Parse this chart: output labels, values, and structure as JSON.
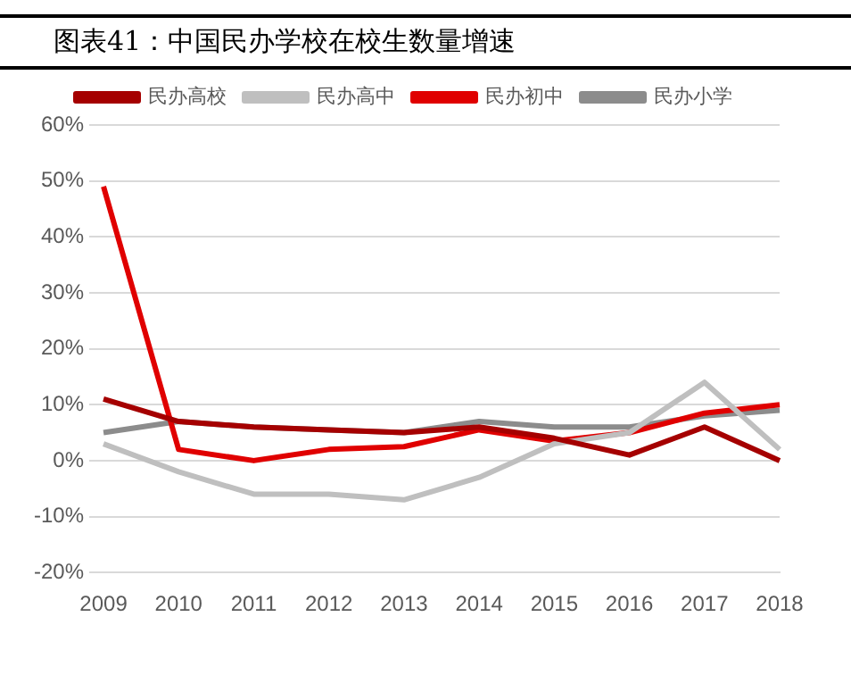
{
  "chart_data": {
    "type": "line",
    "title": "图表41：中国民办学校在校生数量增速",
    "categories": [
      "2009",
      "2010",
      "2011",
      "2012",
      "2013",
      "2014",
      "2015",
      "2016",
      "2017",
      "2018"
    ],
    "series": [
      {
        "name": "民办高校",
        "color": "#a50000",
        "values": [
          11,
          7,
          6,
          5.5,
          5,
          6,
          4,
          1,
          6,
          0
        ]
      },
      {
        "name": "民办高中",
        "color": "#bfbfbf",
        "values": [
          3,
          -2,
          -6,
          -6,
          -7,
          -3,
          3,
          5,
          14,
          2
        ]
      },
      {
        "name": "民办初中",
        "color": "#e00000",
        "values": [
          49,
          2,
          0,
          2,
          2.5,
          5.5,
          3.5,
          5,
          8.5,
          10
        ]
      },
      {
        "name": "民办小学",
        "color": "#8c8c8c",
        "values": [
          5,
          7,
          6,
          5.5,
          5,
          7,
          6,
          6,
          8,
          9
        ]
      }
    ],
    "ylim": [
      -20,
      60
    ],
    "yticks": [
      {
        "value": -20,
        "label": "-20%"
      },
      {
        "value": -10,
        "label": "-10%"
      },
      {
        "value": 0,
        "label": "0%"
      },
      {
        "value": 10,
        "label": "10%"
      },
      {
        "value": 20,
        "label": "20%"
      },
      {
        "value": 30,
        "label": "30%"
      },
      {
        "value": 40,
        "label": "40%"
      },
      {
        "value": 50,
        "label": "50%"
      },
      {
        "value": 60,
        "label": "60%"
      }
    ],
    "grid": "y",
    "legend": "top",
    "marker": "none",
    "line_style": "solid"
  }
}
